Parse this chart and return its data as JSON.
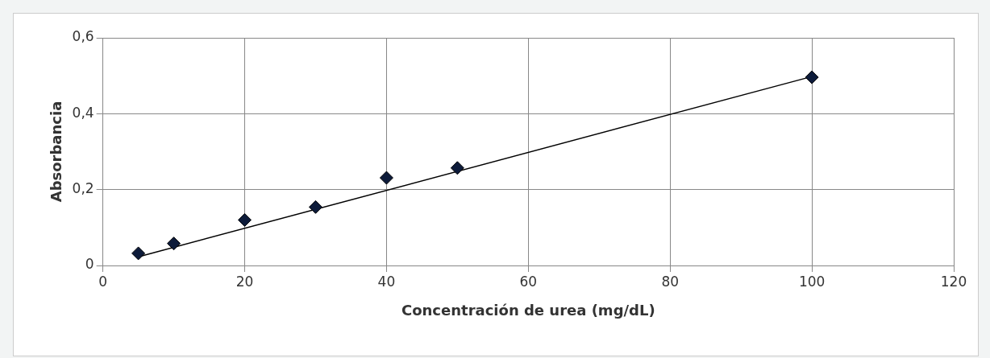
{
  "chart_data": {
    "type": "scatter",
    "xlabel": "Concentración de urea (mg/dL)",
    "ylabel": "Absorbancia",
    "xlim": [
      0,
      120
    ],
    "xticks": [
      0,
      20,
      40,
      60,
      80,
      100,
      120
    ],
    "ylim": [
      0,
      0.6
    ],
    "yticks": [
      {
        "value": 0,
        "label": "0"
      },
      {
        "value": 0.2,
        "label": "0,2"
      },
      {
        "value": 0.4,
        "label": "0,4"
      },
      {
        "value": 0.6,
        "label": "0,6"
      }
    ],
    "grid": true,
    "legend": false,
    "marker": "diamond",
    "series": [
      {
        "color": "#0d1b3a",
        "x": [
          5,
          10,
          20,
          30,
          40,
          50,
          100
        ],
        "values": [
          0.032,
          0.058,
          0.12,
          0.154,
          0.231,
          0.257,
          0.496
        ]
      },
      {
        "type": "line",
        "color": "#000000",
        "marker": "none",
        "x": [
          5,
          100
        ],
        "values": [
          0.023,
          0.498
        ]
      }
    ]
  }
}
